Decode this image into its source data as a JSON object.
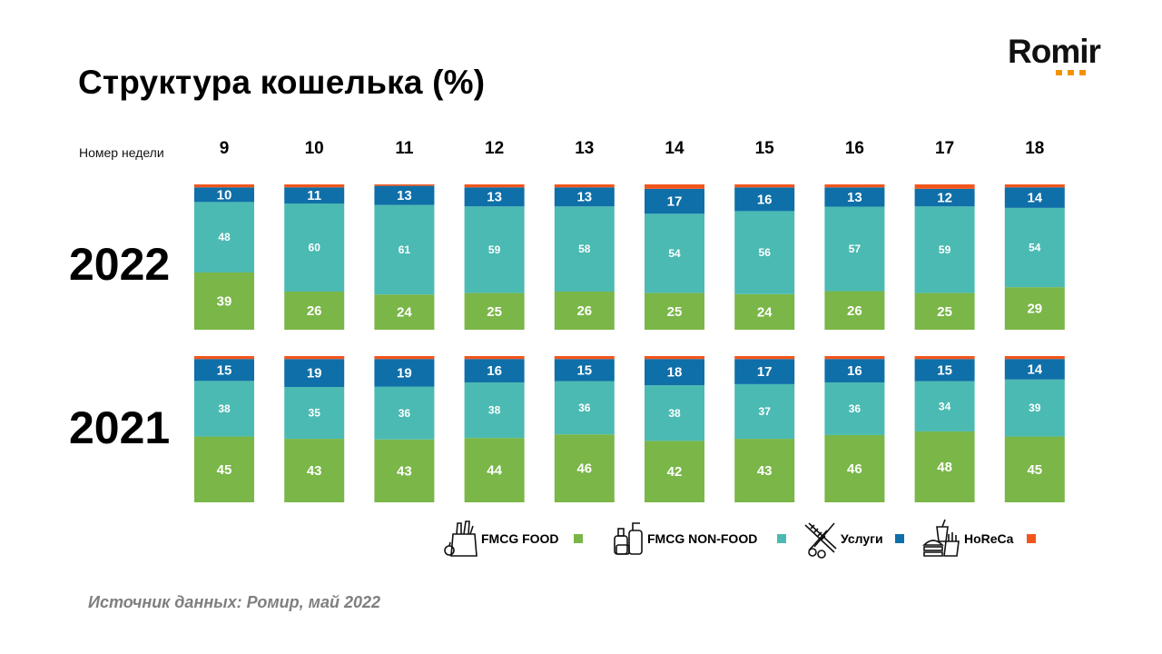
{
  "title": "Структура кошелька (%)",
  "logo": {
    "text": "Romir"
  },
  "source": "Источник данных: Ромир, май 2022",
  "chart_data": {
    "type": "bar",
    "stacked": true,
    "normalized": true,
    "xlabel": "Номер недели",
    "categories": [
      "9",
      "10",
      "11",
      "12",
      "13",
      "14",
      "15",
      "16",
      "17",
      "18"
    ],
    "colors": {
      "fmcg_food": "#7ab648",
      "fmcg_nonfood": "#4bbab2",
      "services": "#0f6fa8",
      "horeca": "#f2561d"
    },
    "legend": [
      {
        "key": "fmcg_food",
        "label": "FMCG FOOD",
        "icon": "grocery-bag-icon"
      },
      {
        "key": "fmcg_nonfood",
        "label": "FMCG NON-FOOD",
        "icon": "cosmetics-bottles-icon"
      },
      {
        "key": "services",
        "label": "Услуги",
        "icon": "scissors-comb-icon"
      },
      {
        "key": "horeca",
        "label": "HoReCa",
        "icon": "fast-food-icon"
      }
    ],
    "panels": [
      {
        "year": "2022",
        "series": [
          {
            "key": "fmcg_food",
            "name": "FMCG FOOD",
            "values": [
              39,
              26,
              24,
              25,
              26,
              25,
              24,
              26,
              25,
              29
            ]
          },
          {
            "key": "fmcg_nonfood",
            "name": "FMCG NON-FOOD",
            "values": [
              48,
              60,
              61,
              59,
              58,
              54,
              56,
              57,
              59,
              54
            ]
          },
          {
            "key": "services",
            "name": "Услуги",
            "values": [
              10,
              11,
              13,
              13,
              13,
              17,
              16,
              13,
              12,
              14
            ]
          },
          {
            "key": "horeca",
            "name": "HoReCa",
            "values": [
              2,
              2,
              1,
              2,
              2,
              3,
              2,
              2,
              3,
              2
            ]
          }
        ]
      },
      {
        "year": "2021",
        "series": [
          {
            "key": "fmcg_food",
            "name": "FMCG FOOD",
            "values": [
              45,
              43,
              43,
              44,
              46,
              42,
              43,
              46,
              48,
              45
            ]
          },
          {
            "key": "fmcg_nonfood",
            "name": "FMCG NON-FOOD",
            "values": [
              38,
              35,
              36,
              38,
              36,
              38,
              37,
              36,
              34,
              39
            ]
          },
          {
            "key": "services",
            "name": "Услуги",
            "values": [
              15,
              19,
              19,
              16,
              15,
              18,
              17,
              16,
              15,
              14
            ]
          },
          {
            "key": "horeca",
            "name": "HoReCa",
            "values": [
              2,
              2,
              2,
              2,
              2,
              2,
              2,
              2,
              2,
              2
            ]
          }
        ]
      }
    ]
  }
}
